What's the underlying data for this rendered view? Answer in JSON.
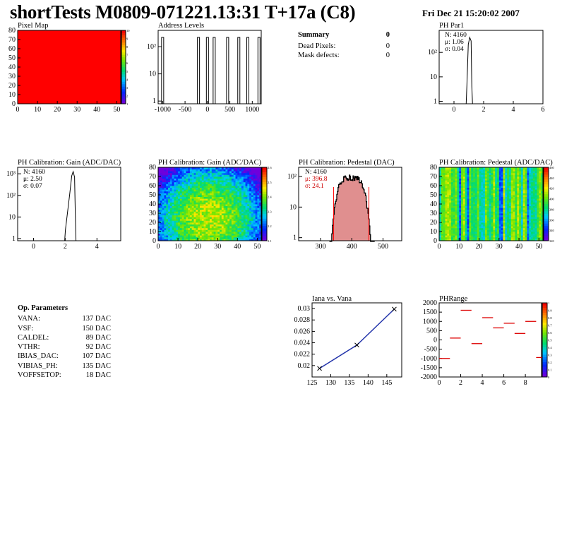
{
  "header": {
    "title": "shortTests M0809-071221.13:31 T+17a (C8)",
    "date": "Fri Dec 21 15:20:02 2007"
  },
  "summary": {
    "title": "Summary",
    "total": "0",
    "rows": [
      {
        "label": "Dead Pixels:",
        "value": "0"
      },
      {
        "label": "Mask defects:",
        "value": "0"
      }
    ]
  },
  "op_params": {
    "title": "Op. Parameters",
    "rows": [
      {
        "name": "VANA:",
        "value": "137 DAC"
      },
      {
        "name": "VSF:",
        "value": "150 DAC"
      },
      {
        "name": "CALDEL:",
        "value": "89 DAC"
      },
      {
        "name": "VTHR:",
        "value": "92 DAC"
      },
      {
        "name": "IBIAS_DAC:",
        "value": "107 DAC"
      },
      {
        "name": "VIBIAS_PH:",
        "value": "135 DAC"
      },
      {
        "name": "VOFFSETOP:",
        "value": "18 DAC"
      }
    ]
  },
  "chart_data": [
    {
      "id": "pixel_map",
      "type": "heatmap",
      "title": "Pixel Map",
      "xlim": [
        0,
        52
      ],
      "ylim": [
        0,
        80
      ],
      "xticks": [
        "0",
        "10",
        "20",
        "30",
        "40",
        "50"
      ],
      "yticks": [
        "0",
        "10",
        "20",
        "30",
        "40",
        "50",
        "60",
        "70",
        "80"
      ],
      "uniform_value": 10,
      "color_fill": "#ff0000",
      "zscale_ticks": [
        "10",
        "9",
        "8",
        "7",
        "6",
        "5",
        "4",
        "3",
        "2",
        "1"
      ]
    },
    {
      "id": "address_levels",
      "type": "bar",
      "title": "Address Levels",
      "xlim": [
        -1100,
        1200
      ],
      "log_y": true,
      "xticks": [
        "-1000",
        "-500",
        "0",
        "500",
        "1000"
      ],
      "yticks": [
        "1",
        "10",
        "10²"
      ],
      "peaks": [
        -1000,
        -200,
        0,
        150,
        450,
        700,
        900,
        1150
      ]
    },
    {
      "id": "ph_par1",
      "type": "bar",
      "title": "PH Par1",
      "xlim": [
        -1,
        6
      ],
      "log_y": true,
      "xticks": [
        "0",
        "2",
        "4",
        "6"
      ],
      "yticks": [
        "1",
        "10",
        "10²"
      ],
      "stats": {
        "n": "N: 4160",
        "mean": "μ: 1.06",
        "sigma": "σ: 0.04"
      },
      "peak_x": 1.06,
      "peak_count": 800
    },
    {
      "id": "ph_gain_hist",
      "type": "bar",
      "title": "PH Calibration: Gain (ADC/DAC)",
      "xlim": [
        -1,
        5.5
      ],
      "log_y": true,
      "xticks": [
        "0",
        "2",
        "4"
      ],
      "yticks": [
        "1",
        "10",
        "10²",
        "10³"
      ],
      "stats": {
        "n": "N: 4160",
        "mean": "μ: 2.50",
        "sigma": "σ: 0.07"
      },
      "peak_x": 2.5,
      "peak_count": 800
    },
    {
      "id": "ph_gain_map",
      "type": "heatmap",
      "title": "PH Calibration: Gain (ADC/DAC)",
      "xlim": [
        0,
        52
      ],
      "ylim": [
        0,
        80
      ],
      "xticks": [
        "0",
        "10",
        "20",
        "30",
        "40",
        "50"
      ],
      "yticks": [
        "0",
        "10",
        "20",
        "30",
        "40",
        "50",
        "60",
        "70",
        "80"
      ],
      "zlim": [
        2.1,
        2.6
      ],
      "zscale_ticks": [
        "2.6",
        "2.5",
        "2.4",
        "2.3",
        "2.2",
        "2.1"
      ]
    },
    {
      "id": "ph_pedestal_hist",
      "type": "bar",
      "title": "PH Calibration: Pedestal (DAC)",
      "xlim": [
        230,
        560
      ],
      "log_y": true,
      "xticks": [
        "300",
        "400",
        "500"
      ],
      "yticks": [
        "1",
        "10",
        "10²"
      ],
      "stats": {
        "n": "N: 4160",
        "mean": "μ: 396.8",
        "sigma": "σ: 24.1"
      },
      "mean": 396.8,
      "sigma": 24.1,
      "cut_lines": [
        342,
        455
      ],
      "peak_count": 60
    },
    {
      "id": "ph_pedestal_map",
      "type": "heatmap",
      "title": "PH Calibration: Pedestal (ADC/DAC)",
      "xlim": [
        0,
        52
      ],
      "ylim": [
        0,
        80
      ],
      "xticks": [
        "0",
        "10",
        "20",
        "30",
        "40",
        "50"
      ],
      "yticks": [
        "0",
        "10",
        "20",
        "30",
        "40",
        "50",
        "60",
        "70",
        "80"
      ],
      "zlim": [
        320,
        460
      ],
      "zscale_ticks": [
        "460",
        "440",
        "420",
        "400",
        "380",
        "360",
        "340",
        "320"
      ]
    },
    {
      "id": "iana_vs_vana",
      "type": "line",
      "title": "Iana vs. Vana",
      "x": [
        127,
        137,
        147
      ],
      "y": [
        0.0195,
        0.0236,
        0.0299
      ],
      "xlim": [
        125,
        149
      ],
      "ylim": [
        0.018,
        0.031
      ],
      "xticks": [
        "125",
        "130",
        "135",
        "140",
        "145"
      ],
      "yticks": [
        "0.02",
        "0.022",
        "0.024",
        "0.026",
        "0.028",
        "0.03"
      ]
    },
    {
      "id": "ph_range",
      "type": "heatmap",
      "title": "PHRange",
      "xlim": [
        0,
        9.5
      ],
      "ylim": [
        -2000,
        2000
      ],
      "xticks": [
        "0",
        "2",
        "4",
        "6",
        "8"
      ],
      "yticks": [
        "-2000",
        "-1500",
        "-1000",
        "-500",
        "0",
        "500",
        "1000",
        "1500",
        "2000"
      ],
      "segments": [
        {
          "x": 0,
          "y": -1000
        },
        {
          "x": 1,
          "y": 100
        },
        {
          "x": 2,
          "y": 1600
        },
        {
          "x": 3,
          "y": -200
        },
        {
          "x": 4,
          "y": 1200
        },
        {
          "x": 5,
          "y": 650
        },
        {
          "x": 6,
          "y": 900
        },
        {
          "x": 7,
          "y": 350
        },
        {
          "x": 8,
          "y": 1000
        },
        {
          "x": 9,
          "y": -950
        }
      ],
      "zscale_ticks": [
        "1",
        "0.9",
        "0.8",
        "0.7",
        "0.6",
        "0.5",
        "0.4",
        "0.3",
        "0.2",
        "0.1",
        "0"
      ]
    }
  ]
}
